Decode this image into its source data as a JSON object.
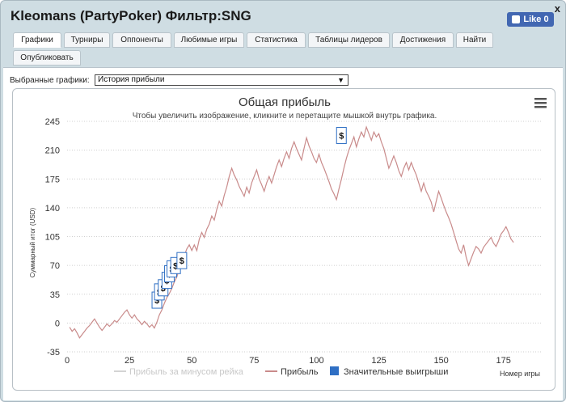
{
  "window": {
    "title": "Kleomans (PartyPoker) Фильтр:SNG",
    "close_glyph": "x",
    "fb_like_label": "Like 0"
  },
  "tabs": [
    {
      "label": "Графики",
      "active": true
    },
    {
      "label": "Турниры"
    },
    {
      "label": "Оппоненты"
    },
    {
      "label": "Любимые игры"
    },
    {
      "label": "Статистика"
    },
    {
      "label": "Таблицы лидеров"
    },
    {
      "label": "Достижения"
    },
    {
      "label": "Найти"
    },
    {
      "label": "Опубликовать"
    }
  ],
  "selector": {
    "label": "Выбранные графики:",
    "value": "История прибыли",
    "arrow": "▼"
  },
  "chart_data": {
    "type": "line",
    "title": "Общая прибыль",
    "subtitle": "Чтобы увеличить изображение, кликните и перетащите мышкой внутрь графика.",
    "xlabel": "Номер игры",
    "ylabel": "Суммарный итог (USD)",
    "xlim": [
      0,
      190
    ],
    "ylim": [
      -35,
      245
    ],
    "x_ticks": [
      0,
      25,
      50,
      75,
      100,
      125,
      150,
      175
    ],
    "y_ticks": [
      245,
      210,
      175,
      140,
      105,
      70,
      35,
      0,
      -35
    ],
    "grid": "horizontal dotted",
    "legend": "bottom",
    "colors": {
      "profit": "#c98b8b",
      "rake": "#d4d4d4",
      "flags": "#2f6fc4"
    },
    "series": [
      {
        "name": "Прибыль за минусом рейка",
        "values": []
      },
      {
        "name": "Прибыль",
        "points": [
          [
            1,
            -5
          ],
          [
            2,
            -10
          ],
          [
            3,
            -7
          ],
          [
            4,
            -12
          ],
          [
            5,
            -18
          ],
          [
            6,
            -14
          ],
          [
            7,
            -10
          ],
          [
            8,
            -6
          ],
          [
            9,
            -3
          ],
          [
            10,
            1
          ],
          [
            11,
            5
          ],
          [
            12,
            0
          ],
          [
            13,
            -5
          ],
          [
            14,
            -9
          ],
          [
            15,
            -5
          ],
          [
            16,
            -1
          ],
          [
            17,
            -4
          ],
          [
            18,
            -1
          ],
          [
            19,
            3
          ],
          [
            20,
            1
          ],
          [
            21,
            5
          ],
          [
            22,
            9
          ],
          [
            23,
            13
          ],
          [
            24,
            16
          ],
          [
            25,
            10
          ],
          [
            26,
            6
          ],
          [
            27,
            10
          ],
          [
            28,
            5
          ],
          [
            29,
            2
          ],
          [
            30,
            -2
          ],
          [
            31,
            2
          ],
          [
            32,
            -1
          ],
          [
            33,
            -5
          ],
          [
            34,
            -2
          ],
          [
            35,
            -6
          ],
          [
            36,
            1
          ],
          [
            37,
            10
          ],
          [
            38,
            16
          ],
          [
            39,
            24
          ],
          [
            40,
            31
          ],
          [
            41,
            36
          ],
          [
            42,
            42
          ],
          [
            43,
            50
          ],
          [
            44,
            56
          ],
          [
            45,
            66
          ],
          [
            46,
            74
          ],
          [
            47,
            82
          ],
          [
            48,
            90
          ],
          [
            49,
            95
          ],
          [
            50,
            88
          ],
          [
            51,
            95
          ],
          [
            52,
            88
          ],
          [
            53,
            102
          ],
          [
            54,
            110
          ],
          [
            55,
            104
          ],
          [
            56,
            114
          ],
          [
            57,
            120
          ],
          [
            58,
            130
          ],
          [
            59,
            125
          ],
          [
            60,
            138
          ],
          [
            61,
            148
          ],
          [
            62,
            142
          ],
          [
            63,
            155
          ],
          [
            64,
            165
          ],
          [
            65,
            178
          ],
          [
            66,
            188
          ],
          [
            67,
            180
          ],
          [
            68,
            174
          ],
          [
            69,
            166
          ],
          [
            70,
            160
          ],
          [
            71,
            154
          ],
          [
            72,
            165
          ],
          [
            73,
            158
          ],
          [
            74,
            170
          ],
          [
            75,
            178
          ],
          [
            76,
            186
          ],
          [
            77,
            175
          ],
          [
            78,
            168
          ],
          [
            79,
            160
          ],
          [
            80,
            170
          ],
          [
            81,
            178
          ],
          [
            82,
            170
          ],
          [
            83,
            180
          ],
          [
            84,
            190
          ],
          [
            85,
            198
          ],
          [
            86,
            190
          ],
          [
            87,
            200
          ],
          [
            88,
            208
          ],
          [
            89,
            200
          ],
          [
            90,
            212
          ],
          [
            91,
            220
          ],
          [
            92,
            212
          ],
          [
            93,
            205
          ],
          [
            94,
            198
          ],
          [
            95,
            212
          ],
          [
            96,
            225
          ],
          [
            97,
            215
          ],
          [
            98,
            208
          ],
          [
            99,
            200
          ],
          [
            100,
            195
          ],
          [
            101,
            205
          ],
          [
            102,
            195
          ],
          [
            103,
            188
          ],
          [
            104,
            180
          ],
          [
            105,
            172
          ],
          [
            106,
            163
          ],
          [
            107,
            157
          ],
          [
            108,
            150
          ],
          [
            109,
            163
          ],
          [
            110,
            175
          ],
          [
            111,
            188
          ],
          [
            112,
            200
          ],
          [
            113,
            210
          ],
          [
            114,
            218
          ],
          [
            115,
            226
          ],
          [
            116,
            214
          ],
          [
            117,
            224
          ],
          [
            118,
            232
          ],
          [
            119,
            226
          ],
          [
            120,
            238
          ],
          [
            121,
            230
          ],
          [
            122,
            222
          ],
          [
            123,
            232
          ],
          [
            124,
            226
          ],
          [
            125,
            230
          ],
          [
            126,
            220
          ],
          [
            127,
            212
          ],
          [
            128,
            200
          ],
          [
            129,
            188
          ],
          [
            130,
            195
          ],
          [
            131,
            203
          ],
          [
            132,
            195
          ],
          [
            133,
            185
          ],
          [
            134,
            178
          ],
          [
            135,
            188
          ],
          [
            136,
            195
          ],
          [
            137,
            186
          ],
          [
            138,
            195
          ],
          [
            139,
            187
          ],
          [
            140,
            180
          ],
          [
            141,
            170
          ],
          [
            142,
            160
          ],
          [
            143,
            170
          ],
          [
            144,
            160
          ],
          [
            145,
            154
          ],
          [
            146,
            147
          ],
          [
            147,
            135
          ],
          [
            148,
            148
          ],
          [
            149,
            160
          ],
          [
            150,
            152
          ],
          [
            151,
            143
          ],
          [
            152,
            135
          ],
          [
            153,
            128
          ],
          [
            154,
            120
          ],
          [
            155,
            110
          ],
          [
            156,
            100
          ],
          [
            157,
            90
          ],
          [
            158,
            85
          ],
          [
            159,
            95
          ],
          [
            160,
            80
          ],
          [
            161,
            70
          ],
          [
            162,
            78
          ],
          [
            163,
            86
          ],
          [
            164,
            93
          ],
          [
            165,
            90
          ],
          [
            166,
            85
          ],
          [
            167,
            92
          ],
          [
            168,
            96
          ],
          [
            169,
            100
          ],
          [
            170,
            104
          ],
          [
            171,
            97
          ],
          [
            172,
            93
          ],
          [
            173,
            100
          ],
          [
            174,
            108
          ],
          [
            175,
            112
          ],
          [
            176,
            117
          ],
          [
            177,
            110
          ],
          [
            178,
            102
          ],
          [
            179,
            98
          ]
        ]
      },
      {
        "name": "Значительные выигрыши",
        "flags": [
          {
            "x": 36,
            "y": 18,
            "label": "$"
          },
          {
            "x": 37,
            "y": 28,
            "label": "$"
          },
          {
            "x": 38.5,
            "y": 33,
            "label": "$"
          },
          {
            "x": 40,
            "y": 42,
            "label": "$"
          },
          {
            "x": 41,
            "y": 50,
            "label": "$"
          },
          {
            "x": 42,
            "y": 56,
            "label": "$"
          },
          {
            "x": 43.5,
            "y": 60,
            "label": "$"
          },
          {
            "x": 46,
            "y": 66,
            "label": "$"
          },
          {
            "x": 110,
            "y": 218,
            "label": "$"
          }
        ]
      }
    ]
  },
  "chart_menu_icon": "hamburger-menu"
}
